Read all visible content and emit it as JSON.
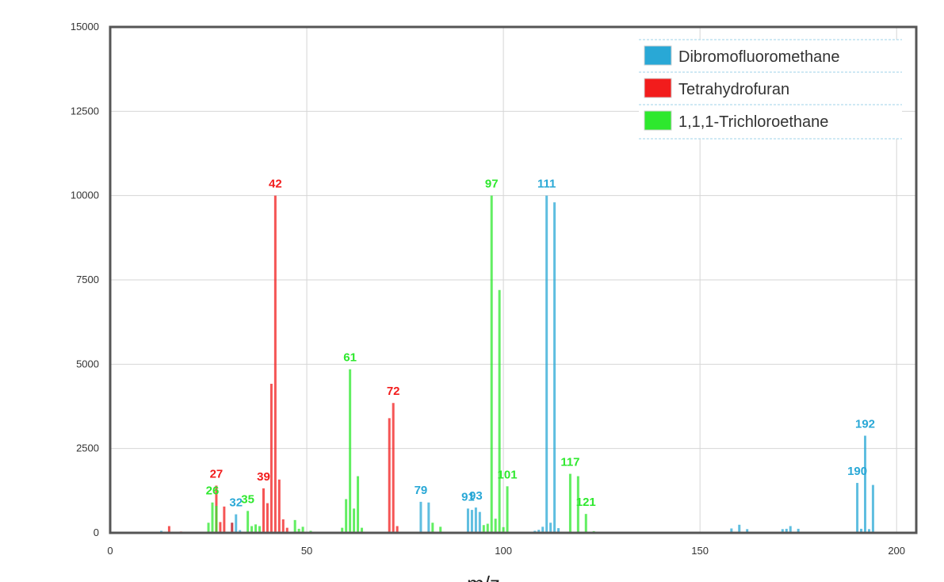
{
  "chart_data": {
    "type": "bar",
    "xlabel": "m/z",
    "ylabel": "",
    "xlim": [
      0,
      205
    ],
    "ylim": [
      0,
      15000
    ],
    "x_ticks": [
      0,
      50,
      100,
      150,
      200
    ],
    "y_ticks": [
      0,
      2500,
      5000,
      7500,
      10000,
      12500,
      15000
    ],
    "grid": true,
    "legend_position": "top-right",
    "series": [
      {
        "name": "Dibromofluoromethane",
        "color": "#29a8d6",
        "points": [
          {
            "x": 13,
            "y": 60
          },
          {
            "x": 31,
            "y": 300
          },
          {
            "x": 32,
            "y": 550
          },
          {
            "x": 33,
            "y": 80
          },
          {
            "x": 79,
            "y": 920
          },
          {
            "x": 81,
            "y": 900
          },
          {
            "x": 91,
            "y": 720
          },
          {
            "x": 92,
            "y": 680
          },
          {
            "x": 93,
            "y": 750
          },
          {
            "x": 94,
            "y": 620
          },
          {
            "x": 108,
            "y": 60
          },
          {
            "x": 109,
            "y": 90
          },
          {
            "x": 110,
            "y": 180
          },
          {
            "x": 111,
            "y": 10000
          },
          {
            "x": 112,
            "y": 300
          },
          {
            "x": 113,
            "y": 9800
          },
          {
            "x": 114,
            "y": 140
          },
          {
            "x": 158,
            "y": 130
          },
          {
            "x": 160,
            "y": 240
          },
          {
            "x": 162,
            "y": 110
          },
          {
            "x": 171,
            "y": 110
          },
          {
            "x": 172,
            "y": 120
          },
          {
            "x": 173,
            "y": 200
          },
          {
            "x": 175,
            "y": 120
          },
          {
            "x": 190,
            "y": 1480
          },
          {
            "x": 191,
            "y": 120
          },
          {
            "x": 192,
            "y": 2880
          },
          {
            "x": 193,
            "y": 110
          },
          {
            "x": 194,
            "y": 1420
          }
        ],
        "labels": [
          {
            "x": 32,
            "y": 550,
            "text": "32"
          },
          {
            "x": 79,
            "y": 920,
            "text": "79"
          },
          {
            "x": 91,
            "y": 720,
            "text": "91"
          },
          {
            "x": 93,
            "y": 750,
            "text": "93"
          },
          {
            "x": 111,
            "y": 10000,
            "text": "111"
          },
          {
            "x": 190,
            "y": 1480,
            "text": "190"
          },
          {
            "x": 192,
            "y": 2880,
            "text": "192"
          }
        ]
      },
      {
        "name": "Tetrahydrofuran",
        "color": "#f21c1c",
        "points": [
          {
            "x": 15,
            "y": 200
          },
          {
            "x": 18,
            "y": 40
          },
          {
            "x": 27,
            "y": 1400
          },
          {
            "x": 28,
            "y": 320
          },
          {
            "x": 29,
            "y": 780
          },
          {
            "x": 31,
            "y": 300
          },
          {
            "x": 39,
            "y": 1320
          },
          {
            "x": 40,
            "y": 880
          },
          {
            "x": 41,
            "y": 4420
          },
          {
            "x": 42,
            "y": 10000
          },
          {
            "x": 43,
            "y": 1580
          },
          {
            "x": 44,
            "y": 400
          },
          {
            "x": 45,
            "y": 150
          },
          {
            "x": 71,
            "y": 3400
          },
          {
            "x": 72,
            "y": 3850
          },
          {
            "x": 73,
            "y": 200
          }
        ],
        "labels": [
          {
            "x": 27,
            "y": 1400,
            "text": "27"
          },
          {
            "x": 39,
            "y": 1320,
            "text": "39"
          },
          {
            "x": 42,
            "y": 10000,
            "text": "42"
          },
          {
            "x": 72,
            "y": 3850,
            "text": "72"
          }
        ]
      },
      {
        "name": "1,1,1-Trichloroethane",
        "color": "#2ee82e",
        "points": [
          {
            "x": 25,
            "y": 300
          },
          {
            "x": 26,
            "y": 900
          },
          {
            "x": 27,
            "y": 800
          },
          {
            "x": 35,
            "y": 650
          },
          {
            "x": 36,
            "y": 200
          },
          {
            "x": 37,
            "y": 250
          },
          {
            "x": 38,
            "y": 200
          },
          {
            "x": 47,
            "y": 380
          },
          {
            "x": 48,
            "y": 120
          },
          {
            "x": 49,
            "y": 180
          },
          {
            "x": 51,
            "y": 60
          },
          {
            "x": 59,
            "y": 150
          },
          {
            "x": 60,
            "y": 1000
          },
          {
            "x": 61,
            "y": 4850
          },
          {
            "x": 62,
            "y": 720
          },
          {
            "x": 63,
            "y": 1680
          },
          {
            "x": 64,
            "y": 150
          },
          {
            "x": 82,
            "y": 300
          },
          {
            "x": 84,
            "y": 180
          },
          {
            "x": 95,
            "y": 230
          },
          {
            "x": 96,
            "y": 270
          },
          {
            "x": 97,
            "y": 10000
          },
          {
            "x": 98,
            "y": 420
          },
          {
            "x": 99,
            "y": 7200
          },
          {
            "x": 100,
            "y": 170
          },
          {
            "x": 101,
            "y": 1380
          },
          {
            "x": 117,
            "y": 1750
          },
          {
            "x": 119,
            "y": 1680
          },
          {
            "x": 121,
            "y": 560
          },
          {
            "x": 123,
            "y": 50
          }
        ],
        "labels": [
          {
            "x": 26,
            "y": 900,
            "text": "26"
          },
          {
            "x": 35,
            "y": 650,
            "text": "35"
          },
          {
            "x": 61,
            "y": 4850,
            "text": "61"
          },
          {
            "x": 97,
            "y": 10000,
            "text": "97"
          },
          {
            "x": 101,
            "y": 1380,
            "text": "101"
          },
          {
            "x": 117,
            "y": 1750,
            "text": "117"
          },
          {
            "x": 121,
            "y": 560,
            "text": "121"
          }
        ]
      }
    ]
  }
}
